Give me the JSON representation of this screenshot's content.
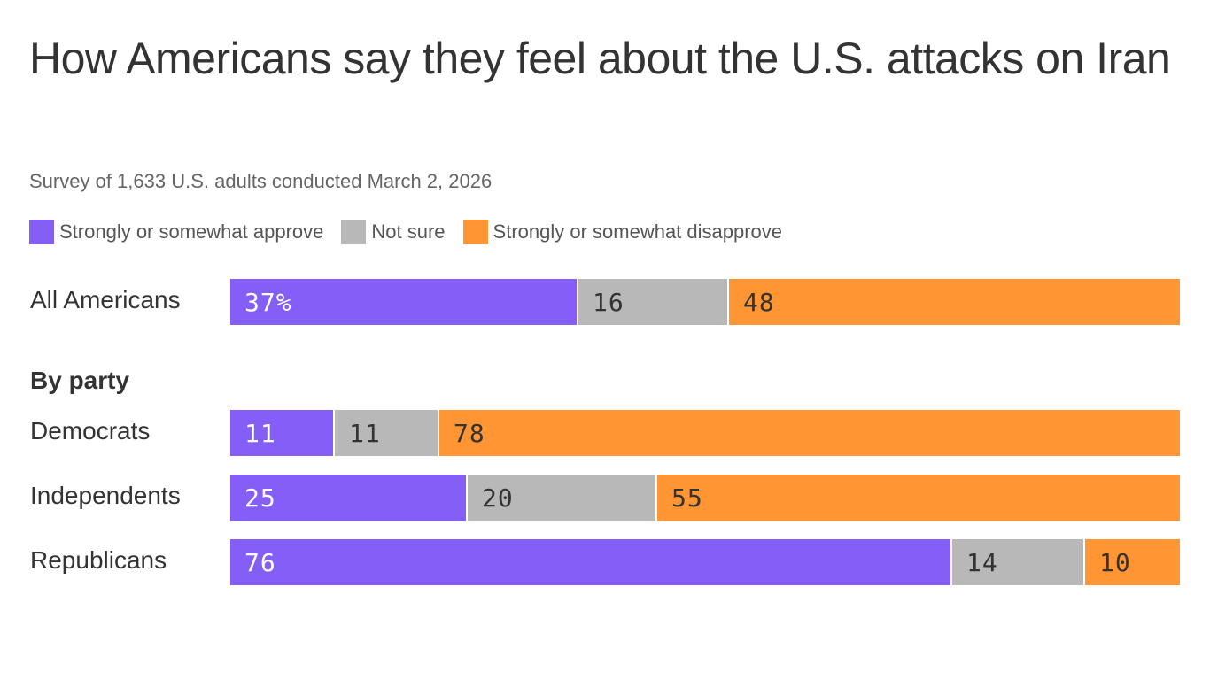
{
  "chart_data": {
    "type": "bar",
    "orientation": "horizontal",
    "stacked": true,
    "title": "How Americans say they feel about the U.S. attacks on Iran",
    "subtitle": "Survey of 1,633 U.S. adults conducted March 2, 2026",
    "section_label": "By party",
    "legend": [
      {
        "name": "Strongly or somewhat approve",
        "key": "approve",
        "color": "#845ef7"
      },
      {
        "name": "Not sure",
        "key": "notsure",
        "color": "#b8b8b8"
      },
      {
        "name": "Strongly or somewhat disapprove",
        "key": "disapprove",
        "color": "#ff9533"
      }
    ],
    "rows": [
      {
        "label": "All Americans",
        "group": "overall",
        "values": [
          37,
          16,
          48
        ],
        "value_labels": [
          "37%",
          "16",
          "48"
        ]
      },
      {
        "label": "Democrats",
        "group": "party",
        "values": [
          11,
          11,
          78
        ],
        "value_labels": [
          "11",
          "11",
          "78"
        ]
      },
      {
        "label": "Independents",
        "group": "party",
        "values": [
          25,
          20,
          55
        ],
        "value_labels": [
          "25",
          "20",
          "55"
        ]
      },
      {
        "label": "Republicans",
        "group": "party",
        "values": [
          76,
          14,
          10
        ],
        "value_labels": [
          "76",
          "14",
          "10"
        ]
      }
    ],
    "xlim": [
      0,
      100
    ]
  }
}
